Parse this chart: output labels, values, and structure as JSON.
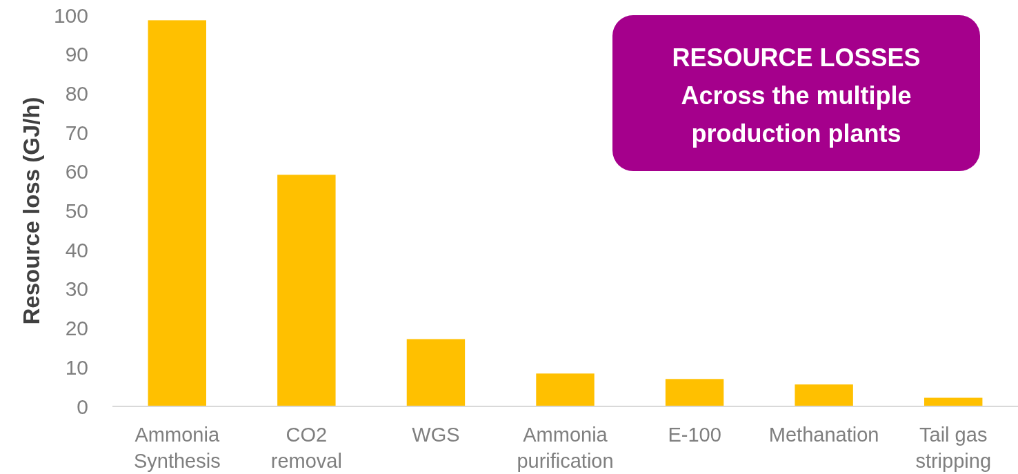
{
  "chart_data": {
    "type": "bar",
    "title": "RESOURCE LOSSES",
    "subtitle": "Across the multiple production plants",
    "ylabel": "Resource loss (GJ/h)",
    "categories": [
      "Ammonia Synthesis",
      "CO2 removal",
      "WGS",
      "Ammonia purification",
      "E-100",
      "Methanation",
      "Tail gas stripping"
    ],
    "values": [
      98.7,
      59.2,
      17.2,
      8.4,
      7.0,
      5.6,
      2.2
    ],
    "color": "#ffc000",
    "ylim": [
      0,
      100
    ],
    "yticks": [
      0,
      10,
      20,
      30,
      40,
      50,
      60,
      70,
      80,
      90,
      100
    ]
  }
}
